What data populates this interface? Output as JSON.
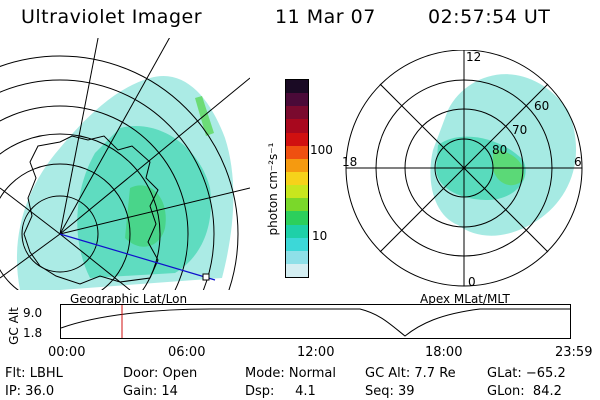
{
  "header": {
    "instrument": "Ultraviolet Imager",
    "date": "11 Mar 07",
    "time": "02:57:54 UT"
  },
  "left_panel": {
    "caption": "Geographic Lat/Lon"
  },
  "right_panel": {
    "caption": "Apex MLat/MLT",
    "mlt_labels": [
      "12",
      "18",
      "6",
      "0"
    ],
    "lat_labels": [
      "60",
      "70",
      "80"
    ]
  },
  "colorbar": {
    "label": "photon cm⁻²s⁻¹",
    "ticks": [
      "100",
      "10"
    ],
    "colors": [
      "#1a0a24",
      "#4a0a38",
      "#7a0a2e",
      "#a8081e",
      "#d01010",
      "#ef5010",
      "#f59a10",
      "#f6d21a",
      "#c8e61e",
      "#7ad82a",
      "#2ccf5c",
      "#1ed0a8",
      "#3cd8d8",
      "#8ee0e8",
      "#d4eef2"
    ]
  },
  "timeline": {
    "y_label": "GC Alt",
    "y_ticks": [
      "9.0",
      "1.8"
    ],
    "x_ticks": [
      "00:00",
      "06:00",
      "12:00",
      "18:00",
      "23:59"
    ],
    "marker_time": "02:57:54"
  },
  "info": {
    "filter": "Flt: LBHL",
    "ip": "IP: 36.0",
    "door": "Door: Open",
    "gain": "Gain: 14",
    "mode": "Mode: Normal",
    "dsp": "Dsp:     4.1",
    "gc_alt": "GC Alt: 7.7 Re",
    "seq": "Seq: 39",
    "glat": "GLat: −65.2",
    "glon": "GLon:  84.2"
  }
}
